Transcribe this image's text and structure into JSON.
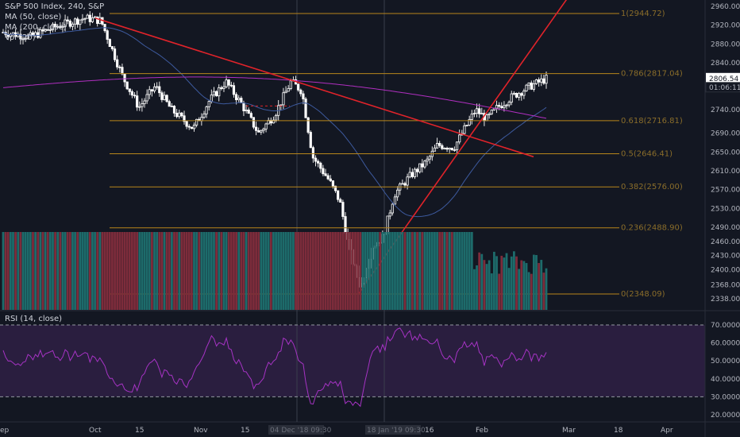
{
  "main_legend": {
    "symbol": "S&P 500 Index, 240, S&P",
    "ma50": "MA (50, close)",
    "ma200": "MA (200, close)",
    "vol": "Vol (20)"
  },
  "rsi_legend": "RSI (14, close)",
  "price_axis": [
    "2960.00",
    "2920.00",
    "2880.00",
    "2840.00",
    "2806.54",
    "2740.00",
    "2690.00",
    "2650.00",
    "2610.00",
    "2570.00",
    "2530.00",
    "2490.00",
    "2460.00",
    "2430.00",
    "2400.00",
    "2368.00",
    "2338.00"
  ],
  "rsi_axis": [
    "70.0000",
    "60.0000",
    "50.0000",
    "40.0000",
    "30.0000",
    "20.0000"
  ],
  "last_price": {
    "price": "2806.54",
    "timer": "01:06:11"
  },
  "time_axis": [
    "ep",
    "Oct",
    "15",
    "Nov",
    "15",
    "Dec",
    "2019",
    "16",
    "Feb",
    "Mar",
    "18",
    "Apr"
  ],
  "time_marker_labels": [
    "04 Dec '18  09:30",
    "18 Jan '19  09:30"
  ],
  "fib_levels": [
    {
      "label": "1(2944.72)",
      "price": 2944.72
    },
    {
      "label": "0.786(2817.04)",
      "price": 2817.04
    },
    {
      "label": "0.618(2716.81)",
      "price": 2716.81
    },
    {
      "label": "0.5(2646.41)",
      "price": 2646.41
    },
    {
      "label": "0.382(2576.00)",
      "price": 2576.0
    },
    {
      "label": "0.236(2488.90)",
      "price": 2488.9
    },
    {
      "label": "0(2348.09)",
      "price": 2348.09
    }
  ],
  "colors": {
    "bg": "#131722",
    "up": "#ffffff",
    "down": "#ffffff",
    "fib": "#b8861b",
    "trend": "#e0232a",
    "ma50": "#3d5a9e",
    "ma200": "#b02fc0",
    "vol_up": "#1d6b6b",
    "vol_down": "#7d2c3b",
    "rsi": "#a633c4",
    "rsi_band": "#2a1e3f",
    "price_tag_bg": "#ffffff",
    "timer_bg": "#131722"
  }
}
